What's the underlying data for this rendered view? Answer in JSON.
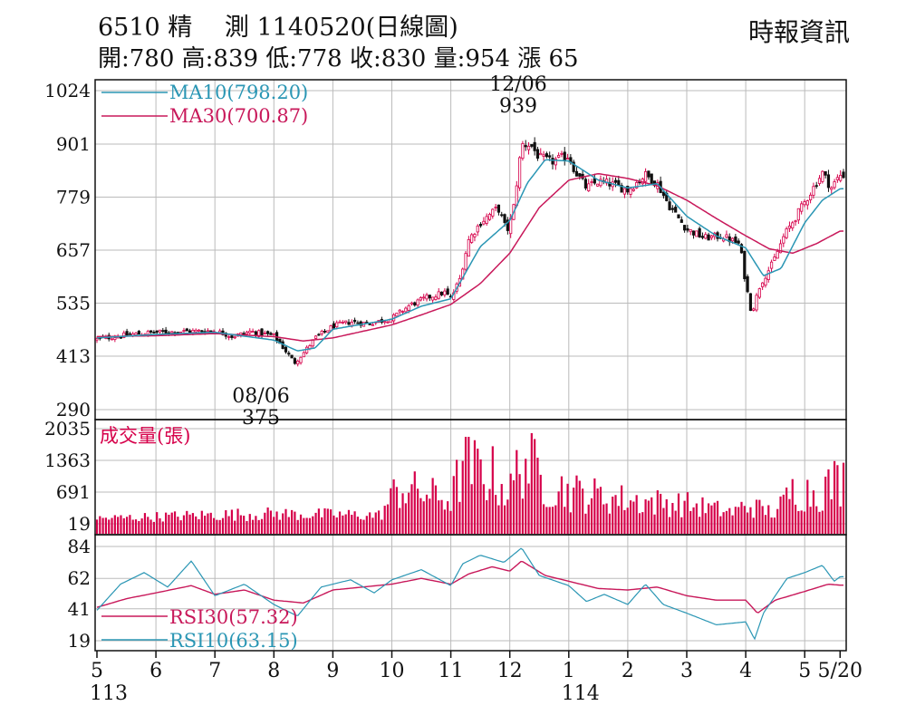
{
  "header": {
    "title": "6510  精　 測 1140520(日線圖)",
    "ohlc": "開:780 高:839 低:778 收:830 量:954 漲 65",
    "source": "時報資訊"
  },
  "colors": {
    "up": "#d6004a",
    "down": "#111111",
    "ma10": "#2a96b4",
    "ma30": "#c8185a",
    "volume": "#d6004a",
    "rsi10": "#2a96b4",
    "rsi30": "#c8185a",
    "grid": "#bbbbbb"
  },
  "chart_data": [
    {
      "type": "candlestick",
      "title": "6510 精 測 1140520(日線圖)",
      "y_ticks": [
        1024,
        901,
        779,
        657,
        535,
        413,
        290
      ],
      "ylim": [
        290,
        1024
      ],
      "grid": true,
      "legend": [
        {
          "label": "MA10(798.20)",
          "series": "ma10"
        },
        {
          "label": "MA30(700.87)",
          "series": "ma30"
        }
      ],
      "annotations": [
        {
          "label_date": "12/06",
          "label_value": "939",
          "position": "peak"
        },
        {
          "label_date": "08/06",
          "label_value": "375",
          "position": "trough"
        }
      ],
      "x_ticks": [
        {
          "label": "5",
          "sub": "113",
          "month_index": 0
        },
        {
          "label": "6",
          "month_index": 1
        },
        {
          "label": "7",
          "month_index": 2
        },
        {
          "label": "8",
          "month_index": 3
        },
        {
          "label": "9",
          "month_index": 4
        },
        {
          "label": "10",
          "month_index": 5
        },
        {
          "label": "11",
          "month_index": 6
        },
        {
          "label": "12",
          "month_index": 7
        },
        {
          "label": "1",
          "sub": "114",
          "month_index": 8
        },
        {
          "label": "2",
          "month_index": 9
        },
        {
          "label": "3",
          "month_index": 10
        },
        {
          "label": "4",
          "month_index": 11
        },
        {
          "label": "5",
          "month_index": 12
        },
        {
          "label": "5/20",
          "month_index": 12.6
        }
      ],
      "close_path": [
        {
          "m": 0,
          "v": 452
        },
        {
          "m": 0.5,
          "v": 462
        },
        {
          "m": 1,
          "v": 468
        },
        {
          "m": 1.5,
          "v": 470
        },
        {
          "m": 2,
          "v": 472
        },
        {
          "m": 2.3,
          "v": 458
        },
        {
          "m": 2.6,
          "v": 470
        },
        {
          "m": 3,
          "v": 460
        },
        {
          "m": 3.2,
          "v": 425
        },
        {
          "m": 3.35,
          "v": 398
        },
        {
          "m": 3.5,
          "v": 420
        },
        {
          "m": 3.7,
          "v": 455
        },
        {
          "m": 4,
          "v": 482
        },
        {
          "m": 4.3,
          "v": 492
        },
        {
          "m": 4.6,
          "v": 488
        },
        {
          "m": 5,
          "v": 500
        },
        {
          "m": 5.3,
          "v": 530
        },
        {
          "m": 5.6,
          "v": 548
        },
        {
          "m": 5.9,
          "v": 560
        },
        {
          "m": 6,
          "v": 545
        },
        {
          "m": 6.15,
          "v": 590
        },
        {
          "m": 6.3,
          "v": 680
        },
        {
          "m": 6.5,
          "v": 720
        },
        {
          "m": 6.8,
          "v": 755
        },
        {
          "m": 6.95,
          "v": 700
        },
        {
          "m": 7.05,
          "v": 740
        },
        {
          "m": 7.2,
          "v": 900
        },
        {
          "m": 7.35,
          "v": 900
        },
        {
          "m": 7.5,
          "v": 870
        },
        {
          "m": 7.7,
          "v": 860
        },
        {
          "m": 8,
          "v": 875
        },
        {
          "m": 8.1,
          "v": 840
        },
        {
          "m": 8.3,
          "v": 800
        },
        {
          "m": 8.5,
          "v": 815
        },
        {
          "m": 8.7,
          "v": 810
        },
        {
          "m": 9,
          "v": 795
        },
        {
          "m": 9.3,
          "v": 830
        },
        {
          "m": 9.5,
          "v": 810
        },
        {
          "m": 9.7,
          "v": 760
        },
        {
          "m": 10,
          "v": 705
        },
        {
          "m": 10.3,
          "v": 685
        },
        {
          "m": 10.6,
          "v": 690
        },
        {
          "m": 10.9,
          "v": 670
        },
        {
          "m": 11,
          "v": 580
        },
        {
          "m": 11.1,
          "v": 512
        },
        {
          "m": 11.25,
          "v": 580
        },
        {
          "m": 11.45,
          "v": 625
        },
        {
          "m": 11.65,
          "v": 690
        },
        {
          "m": 11.9,
          "v": 745
        },
        {
          "m": 12.1,
          "v": 790
        },
        {
          "m": 12.3,
          "v": 835
        },
        {
          "m": 12.45,
          "v": 800
        },
        {
          "m": 12.6,
          "v": 830
        }
      ],
      "ma10_path": [
        {
          "m": 0,
          "v": 455
        },
        {
          "m": 1,
          "v": 463
        },
        {
          "m": 2,
          "v": 468
        },
        {
          "m": 3,
          "v": 450
        },
        {
          "m": 3.4,
          "v": 425
        },
        {
          "m": 3.7,
          "v": 432
        },
        {
          "m": 4,
          "v": 475
        },
        {
          "m": 5,
          "v": 498
        },
        {
          "m": 5.5,
          "v": 528
        },
        {
          "m": 6,
          "v": 545
        },
        {
          "m": 6.5,
          "v": 665
        },
        {
          "m": 7,
          "v": 725
        },
        {
          "m": 7.3,
          "v": 812
        },
        {
          "m": 7.6,
          "v": 865
        },
        {
          "m": 8,
          "v": 862
        },
        {
          "m": 8.5,
          "v": 818
        },
        {
          "m": 9,
          "v": 800
        },
        {
          "m": 9.5,
          "v": 810
        },
        {
          "m": 10,
          "v": 735
        },
        {
          "m": 10.5,
          "v": 690
        },
        {
          "m": 11,
          "v": 662
        },
        {
          "m": 11.3,
          "v": 598
        },
        {
          "m": 11.6,
          "v": 615
        },
        {
          "m": 12,
          "v": 720
        },
        {
          "m": 12.3,
          "v": 772
        },
        {
          "m": 12.6,
          "v": 798.2
        }
      ],
      "ma30_path": [
        {
          "m": 0,
          "v": 458
        },
        {
          "m": 1,
          "v": 460
        },
        {
          "m": 2,
          "v": 465
        },
        {
          "m": 3,
          "v": 458
        },
        {
          "m": 3.5,
          "v": 448
        },
        {
          "m": 4,
          "v": 455
        },
        {
          "m": 5,
          "v": 485
        },
        {
          "m": 5.5,
          "v": 508
        },
        {
          "m": 6,
          "v": 532
        },
        {
          "m": 6.5,
          "v": 580
        },
        {
          "m": 7,
          "v": 650
        },
        {
          "m": 7.5,
          "v": 755
        },
        {
          "m": 8,
          "v": 818
        },
        {
          "m": 8.5,
          "v": 833
        },
        {
          "m": 9,
          "v": 822
        },
        {
          "m": 9.5,
          "v": 805
        },
        {
          "m": 10,
          "v": 772
        },
        {
          "m": 10.5,
          "v": 730
        },
        {
          "m": 11,
          "v": 690
        },
        {
          "m": 11.4,
          "v": 660
        },
        {
          "m": 11.8,
          "v": 650
        },
        {
          "m": 12.2,
          "v": 672
        },
        {
          "m": 12.6,
          "v": 700.87
        }
      ]
    },
    {
      "type": "bar",
      "title": "成交量(張)",
      "y_ticks": [
        2035,
        1363,
        691,
        19
      ],
      "ylim": [
        19,
        2035
      ],
      "volume_level_path": [
        {
          "m": 0,
          "v": 130
        },
        {
          "m": 2,
          "v": 210
        },
        {
          "m": 3,
          "v": 230
        },
        {
          "m": 4.8,
          "v": 200
        },
        {
          "m": 5.1,
          "v": 780
        },
        {
          "m": 5.6,
          "v": 650
        },
        {
          "m": 6,
          "v": 520
        },
        {
          "m": 6.2,
          "v": 1250
        },
        {
          "m": 6.7,
          "v": 1050
        },
        {
          "m": 7,
          "v": 650
        },
        {
          "m": 7.2,
          "v": 1450
        },
        {
          "m": 7.6,
          "v": 900
        },
        {
          "m": 8,
          "v": 700
        },
        {
          "m": 9,
          "v": 520
        },
        {
          "m": 10,
          "v": 430
        },
        {
          "m": 10.8,
          "v": 260
        },
        {
          "m": 11,
          "v": 420
        },
        {
          "m": 11.5,
          "v": 250
        },
        {
          "m": 11.8,
          "v": 720
        },
        {
          "m": 12.2,
          "v": 680
        },
        {
          "m": 12.6,
          "v": 954
        }
      ]
    },
    {
      "type": "line",
      "title": "RSI",
      "y_ticks": [
        84,
        62,
        41,
        19
      ],
      "ylim": [
        19,
        84
      ],
      "legend": [
        {
          "label": "RSI30(57.32)",
          "series": "rsi30"
        },
        {
          "label": "RSI10(63.15)",
          "series": "rsi10"
        }
      ],
      "rsi10_path": [
        {
          "m": 0,
          "v": 40
        },
        {
          "m": 0.4,
          "v": 58
        },
        {
          "m": 0.8,
          "v": 66
        },
        {
          "m": 1.2,
          "v": 56
        },
        {
          "m": 1.6,
          "v": 74
        },
        {
          "m": 2,
          "v": 50
        },
        {
          "m": 2.5,
          "v": 58
        },
        {
          "m": 3,
          "v": 44
        },
        {
          "m": 3.4,
          "v": 36
        },
        {
          "m": 3.8,
          "v": 56
        },
        {
          "m": 4.3,
          "v": 61
        },
        {
          "m": 4.7,
          "v": 52
        },
        {
          "m": 5,
          "v": 61
        },
        {
          "m": 5.5,
          "v": 68
        },
        {
          "m": 6,
          "v": 57
        },
        {
          "m": 6.2,
          "v": 72
        },
        {
          "m": 6.5,
          "v": 78
        },
        {
          "m": 6.9,
          "v": 73
        },
        {
          "m": 7.2,
          "v": 83
        },
        {
          "m": 7.5,
          "v": 64
        },
        {
          "m": 8,
          "v": 57
        },
        {
          "m": 8.3,
          "v": 46
        },
        {
          "m": 8.6,
          "v": 51
        },
        {
          "m": 9,
          "v": 44
        },
        {
          "m": 9.3,
          "v": 58
        },
        {
          "m": 9.6,
          "v": 44
        },
        {
          "m": 10,
          "v": 38
        },
        {
          "m": 10.5,
          "v": 30
        },
        {
          "m": 11,
          "v": 32
        },
        {
          "m": 11.15,
          "v": 20
        },
        {
          "m": 11.3,
          "v": 38
        },
        {
          "m": 11.7,
          "v": 62
        },
        {
          "m": 12,
          "v": 66
        },
        {
          "m": 12.3,
          "v": 71
        },
        {
          "m": 12.5,
          "v": 60
        },
        {
          "m": 12.6,
          "v": 63.15
        }
      ],
      "rsi30_path": [
        {
          "m": 0,
          "v": 42
        },
        {
          "m": 0.5,
          "v": 48
        },
        {
          "m": 1,
          "v": 52
        },
        {
          "m": 1.6,
          "v": 57
        },
        {
          "m": 2,
          "v": 51
        },
        {
          "m": 2.5,
          "v": 54
        },
        {
          "m": 3,
          "v": 47
        },
        {
          "m": 3.5,
          "v": 45
        },
        {
          "m": 4,
          "v": 54
        },
        {
          "m": 4.5,
          "v": 56
        },
        {
          "m": 5,
          "v": 58
        },
        {
          "m": 5.5,
          "v": 62
        },
        {
          "m": 6,
          "v": 58
        },
        {
          "m": 6.3,
          "v": 65
        },
        {
          "m": 6.7,
          "v": 70
        },
        {
          "m": 7,
          "v": 67
        },
        {
          "m": 7.2,
          "v": 74
        },
        {
          "m": 7.6,
          "v": 64
        },
        {
          "m": 8,
          "v": 60
        },
        {
          "m": 8.5,
          "v": 55
        },
        {
          "m": 9,
          "v": 54
        },
        {
          "m": 9.5,
          "v": 56
        },
        {
          "m": 10,
          "v": 50
        },
        {
          "m": 10.5,
          "v": 47
        },
        {
          "m": 11,
          "v": 47
        },
        {
          "m": 11.2,
          "v": 38
        },
        {
          "m": 11.5,
          "v": 47
        },
        {
          "m": 12,
          "v": 53
        },
        {
          "m": 12.4,
          "v": 58
        },
        {
          "m": 12.6,
          "v": 57.32
        }
      ]
    }
  ]
}
